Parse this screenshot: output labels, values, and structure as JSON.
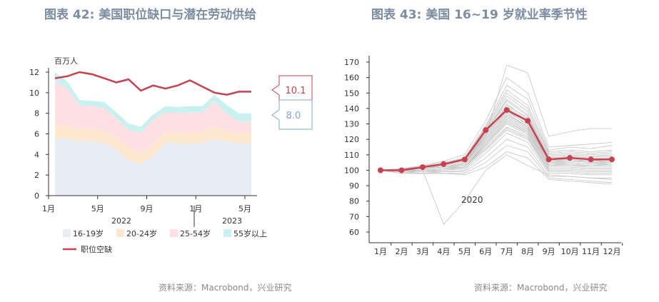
{
  "left": {
    "title": "图表 42: 美国职位缺口与潜在劳动供给",
    "source": "资料来源：Macrobond，兴业研究",
    "unit_label": "百万人",
    "callouts": {
      "red": "10.1",
      "blue": "8.0"
    },
    "colors": {
      "c1619": "#e7edf5",
      "c2024": "#fde7cf",
      "c2554": "#fde0e3",
      "c55": "#c9f1ef",
      "openings": "#c8414e",
      "callout_blue": "#7fa7d4"
    },
    "chart_data": {
      "type": "area",
      "x": [
        "2022-01",
        "2022-02",
        "2022-03",
        "2022-04",
        "2022-05",
        "2022-06",
        "2022-07",
        "2022-08",
        "2022-09",
        "2022-10",
        "2022-11",
        "2022-12",
        "2023-01",
        "2023-02",
        "2023-03",
        "2023-04",
        "2023-05"
      ],
      "xticks": [
        {
          "label": "1月",
          "i": 0
        },
        {
          "label": "5月",
          "i": 4
        },
        {
          "label": "9月",
          "i": 8
        },
        {
          "label": "1月",
          "i": 12
        },
        {
          "label": "5月",
          "i": 16
        }
      ],
      "year_labels": [
        {
          "label": "2022",
          "i": 6
        },
        {
          "label": "2023",
          "i": 15.5
        }
      ],
      "ylim": [
        0,
        12
      ],
      "yticks": [
        0,
        2,
        4,
        6,
        8,
        10,
        12
      ],
      "series": [
        {
          "name": "16-19岁",
          "values": [
            5.5,
            5.5,
            5.3,
            5.3,
            5.1,
            4.5,
            3.4,
            3.1,
            3.8,
            5.2,
            5.1,
            5.0,
            5.1,
            5.5,
            5.3,
            5.1,
            5.0
          ]
        },
        {
          "name": "20-24岁",
          "values": [
            1.4,
            1.3,
            1.2,
            1.2,
            1.2,
            1.2,
            1.2,
            1.1,
            1.1,
            1.0,
            1.0,
            1.1,
            1.1,
            1.2,
            1.0,
            1.0,
            1.1
          ]
        },
        {
          "name": "25-54岁",
          "values": [
            4.3,
            3.6,
            2.3,
            2.2,
            2.2,
            1.8,
            1.8,
            1.9,
            2.5,
            1.9,
            1.9,
            2.0,
            1.9,
            2.5,
            1.7,
            1.1,
            1.1
          ]
        },
        {
          "name": "55岁以上",
          "values": [
            0.8,
            0.7,
            0.5,
            0.5,
            0.6,
            0.6,
            0.6,
            0.6,
            0.5,
            0.6,
            0.6,
            0.6,
            0.6,
            0.6,
            0.8,
            0.8,
            0.8
          ]
        },
        {
          "name": "职位空缺",
          "values": [
            11.4,
            11.6,
            12.0,
            11.8,
            11.4,
            11.0,
            11.3,
            10.2,
            10.7,
            10.4,
            10.7,
            11.2,
            10.6,
            10.0,
            9.8,
            10.1,
            10.1
          ]
        }
      ]
    }
  },
  "right": {
    "title": "图表 43: 美国 16~19 岁就业率季节性",
    "source": "资料来源：Macrobond，兴业研究",
    "annotation": "2020",
    "colors": {
      "highlight": "#c8414e",
      "history": "#c4c4c4"
    },
    "chart_data": {
      "type": "line",
      "categories": [
        "1月",
        "2月",
        "3月",
        "4月",
        "5月",
        "6月",
        "7月",
        "8月",
        "9月",
        "10月",
        "11月",
        "12月"
      ],
      "ylim": [
        60,
        170
      ],
      "yticks": [
        60,
        70,
        80,
        90,
        100,
        110,
        120,
        130,
        140,
        150,
        160,
        170
      ],
      "series": [
        {
          "name": "2020",
          "values": [
            100,
            99,
            100,
            65,
            80,
            100,
            110,
            103,
            97,
            96,
            95,
            94
          ]
        },
        {
          "values": [
            100,
            100,
            101,
            102,
            104,
            122,
            168,
            163,
            122,
            125,
            127,
            127
          ]
        },
        {
          "values": [
            100,
            101,
            103,
            106,
            110,
            132,
            160,
            150,
            115,
            116,
            117,
            118
          ]
        },
        {
          "values": [
            100,
            100,
            102,
            104,
            108,
            128,
            152,
            142,
            112,
            113,
            112,
            113
          ]
        },
        {
          "values": [
            100,
            100,
            102,
            104,
            108,
            126,
            148,
            138,
            110,
            111,
            110,
            111
          ]
        },
        {
          "values": [
            100,
            100,
            101,
            103,
            107,
            125,
            145,
            135,
            109,
            110,
            109,
            110
          ]
        },
        {
          "values": [
            100,
            101,
            102,
            104,
            107,
            126,
            143,
            133,
            108,
            109,
            108,
            108
          ]
        },
        {
          "values": [
            100,
            100,
            101,
            103,
            106,
            124,
            141,
            132,
            107,
            108,
            107,
            107
          ]
        },
        {
          "values": [
            100,
            100,
            102,
            103,
            106,
            124,
            140,
            131,
            107,
            107,
            106,
            107
          ]
        },
        {
          "values": [
            100,
            100,
            101,
            103,
            106,
            123,
            138,
            130,
            106,
            106,
            105,
            106
          ]
        },
        {
          "values": [
            100,
            100,
            101,
            102,
            105,
            122,
            137,
            128,
            105,
            106,
            105,
            105
          ]
        },
        {
          "values": [
            100,
            100,
            101,
            102,
            105,
            121,
            136,
            128,
            105,
            105,
            104,
            105
          ]
        },
        {
          "values": [
            100,
            100,
            101,
            102,
            104,
            120,
            135,
            127,
            104,
            104,
            103,
            104
          ]
        },
        {
          "values": [
            100,
            100,
            100,
            101,
            104,
            119,
            134,
            126,
            103,
            104,
            103,
            103
          ]
        },
        {
          "values": [
            100,
            100,
            100,
            101,
            103,
            118,
            133,
            125,
            103,
            103,
            102,
            102
          ]
        },
        {
          "values": [
            100,
            99,
            100,
            101,
            103,
            117,
            132,
            124,
            102,
            102,
            101,
            101
          ]
        },
        {
          "values": [
            100,
            99,
            100,
            100,
            102,
            116,
            130,
            123,
            101,
            101,
            100,
            100
          ]
        },
        {
          "values": [
            100,
            99,
            99,
            100,
            102,
            115,
            128,
            122,
            100,
            100,
            99,
            99
          ]
        },
        {
          "values": [
            100,
            99,
            99,
            100,
            101,
            113,
            126,
            120,
            99,
            99,
            98,
            98
          ]
        },
        {
          "values": [
            100,
            99,
            99,
            99,
            100,
            111,
            124,
            118,
            98,
            98,
            97,
            97
          ]
        },
        {
          "values": [
            100,
            99,
            98,
            99,
            99,
            108,
            120,
            115,
            96,
            96,
            95,
            95
          ]
        },
        {
          "values": [
            100,
            98,
            98,
            98,
            98,
            105,
            116,
            112,
            95,
            94,
            93,
            92
          ]
        },
        {
          "values": [
            100,
            98,
            98,
            98,
            97,
            102,
            112,
            108,
            94,
            93,
            92,
            91
          ]
        },
        {
          "values": [
            100,
            101,
            103,
            105,
            108,
            129,
            155,
            146,
            113,
            115,
            114,
            116
          ]
        },
        {
          "values": [
            100,
            101,
            102,
            104,
            107,
            127,
            150,
            140,
            111,
            112,
            111,
            112
          ]
        },
        {
          "values": [
            100,
            100,
            101,
            103,
            106,
            125,
            146,
            136,
            109,
            110,
            109,
            109
          ]
        },
        {
          "values": [
            100,
            100,
            102,
            103,
            107,
            124,
            142,
            134,
            108,
            109,
            108,
            108
          ]
        },
        {
          "values": [
            100,
            100,
            101,
            102,
            105,
            123,
            139,
            129,
            106,
            107,
            106,
            106
          ]
        },
        {
          "values": [
            100,
            100,
            101,
            102,
            105,
            122,
            137,
            128,
            106,
            106,
            106,
            106
          ]
        },
        {
          "values": [
            100,
            100,
            101,
            102,
            104,
            120,
            135,
            127,
            104,
            105,
            104,
            104
          ]
        },
        {
          "values": [
            100,
            100,
            100,
            101,
            103,
            118,
            133,
            125,
            103,
            103,
            103,
            103
          ]
        },
        {
          "values": [
            100,
            99,
            100,
            101,
            102,
            117,
            131,
            124,
            102,
            102,
            101,
            101
          ]
        },
        {
          "values": [
            100,
            99,
            99,
            100,
            102,
            114,
            127,
            121,
            100,
            100,
            99,
            99
          ]
        },
        {
          "values": [
            100,
            100,
            102,
            104,
            107,
            126,
            139,
            132,
            107,
            108,
            107,
            107
          ],
          "highlight": true
        }
      ]
    }
  }
}
